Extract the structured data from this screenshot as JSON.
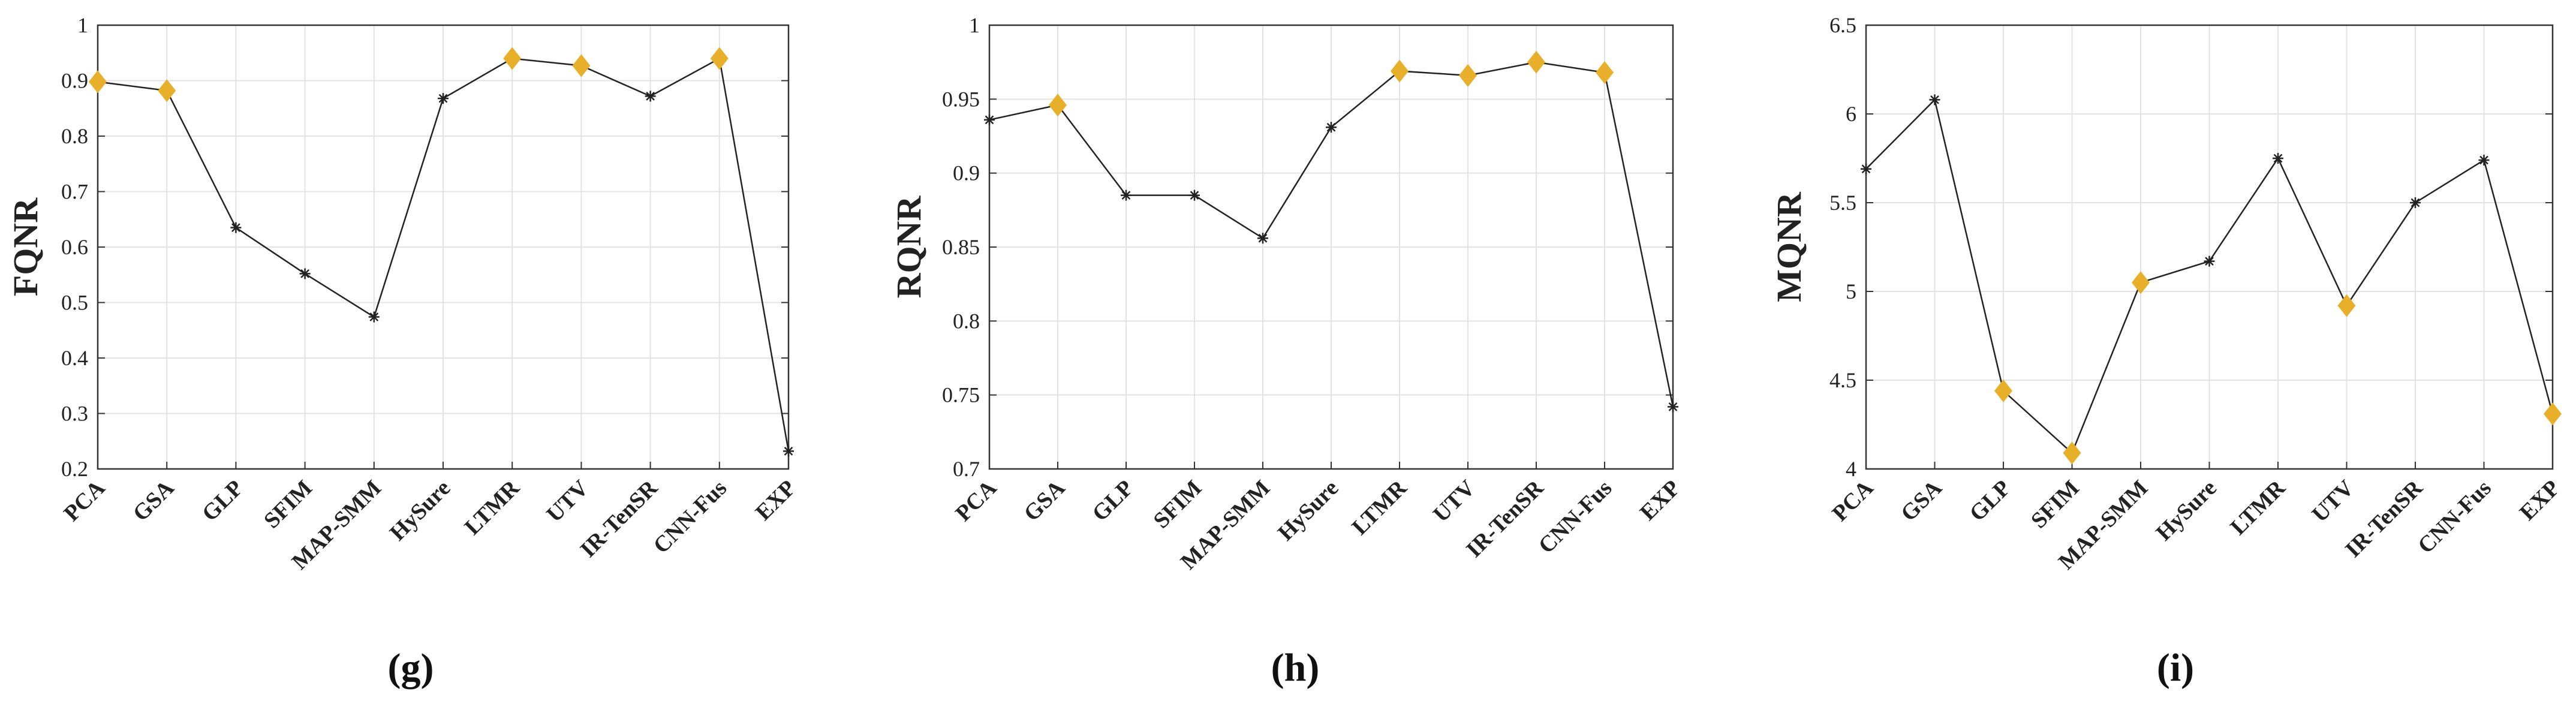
{
  "colors": {
    "highlight": "#E8B02A",
    "line": "#222222",
    "grid": "#e3e3e3"
  },
  "chart_data": [
    {
      "type": "line",
      "panel_label": "(g)",
      "ylabel": "FQNR",
      "categories": [
        "PCA",
        "GSA",
        "GLP",
        "SFIM",
        "MAP-SMM",
        "HySure",
        "LTMR",
        "UTV",
        "IR-TenSR",
        "CNN-Fus",
        "EXP"
      ],
      "values": [
        0.898,
        0.882,
        0.635,
        0.552,
        0.474,
        0.868,
        0.94,
        0.927,
        0.872,
        0.94,
        0.232
      ],
      "markers": [
        "diamond",
        "diamond",
        "star",
        "star",
        "star",
        "star",
        "diamond",
        "diamond",
        "star",
        "diamond",
        "star"
      ],
      "ylim": [
        0.2,
        1
      ],
      "yticks": [
        0.2,
        0.3,
        0.4,
        0.5,
        0.6,
        0.7,
        0.8,
        0.9,
        1
      ],
      "ytick_labels": [
        "0.2",
        "0.3",
        "0.4",
        "0.5",
        "0.6",
        "0.7",
        "0.8",
        "0.9",
        "1"
      ],
      "grid": true
    },
    {
      "type": "line",
      "panel_label": "(h)",
      "ylabel": "RQNR",
      "categories": [
        "PCA",
        "GSA",
        "GLP",
        "SFIM",
        "MAP-SMM",
        "HySure",
        "LTMR",
        "UTV",
        "IR-TenSR",
        "CNN-Fus",
        "EXP"
      ],
      "values": [
        0.936,
        0.946,
        0.885,
        0.885,
        0.856,
        0.931,
        0.969,
        0.966,
        0.975,
        0.968,
        0.742
      ],
      "markers": [
        "star",
        "diamond",
        "star",
        "star",
        "star",
        "star",
        "diamond",
        "diamond",
        "diamond",
        "diamond",
        "star"
      ],
      "ylim": [
        0.7,
        1
      ],
      "yticks": [
        0.7,
        0.75,
        0.8,
        0.85,
        0.9,
        0.95,
        1
      ],
      "ytick_labels": [
        "0.7",
        "0.75",
        "0.8",
        "0.85",
        "0.9",
        "0.95",
        "1"
      ],
      "grid": true
    },
    {
      "type": "line",
      "panel_label": "(i)",
      "ylabel": "MQNR",
      "categories": [
        "PCA",
        "GSA",
        "GLP",
        "SFIM",
        "MAP-SMM",
        "HySure",
        "LTMR",
        "UTV",
        "IR-TenSR",
        "CNN-Fus",
        "EXP"
      ],
      "values": [
        5.69,
        6.08,
        4.44,
        4.09,
        5.05,
        5.17,
        5.75,
        4.92,
        5.5,
        5.74,
        4.31
      ],
      "markers": [
        "star",
        "star",
        "diamond",
        "diamond",
        "diamond",
        "star",
        "star",
        "diamond",
        "star",
        "star",
        "diamond"
      ],
      "ylim": [
        4,
        6.5
      ],
      "yticks": [
        4,
        4.5,
        5,
        5.5,
        6,
        6.5
      ],
      "ytick_labels": [
        "4",
        "4.5",
        "5",
        "5.5",
        "6",
        "6.5"
      ],
      "grid": true
    }
  ]
}
